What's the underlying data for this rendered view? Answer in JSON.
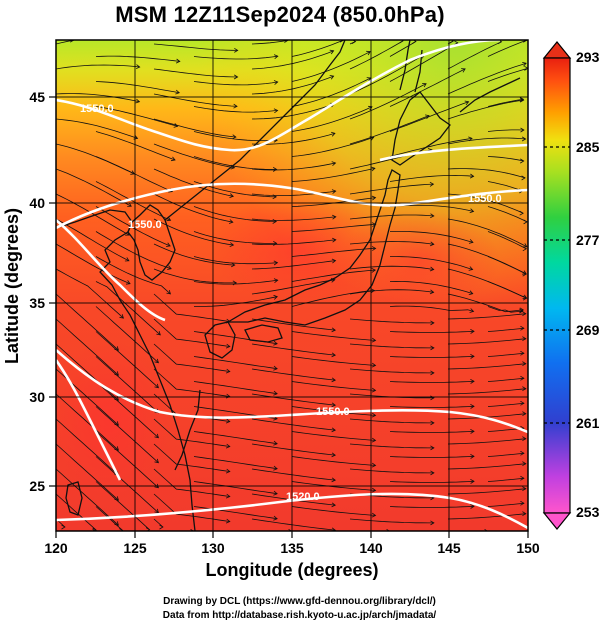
{
  "title": "MSM 12Z11Sep2024 (850.0hPa)",
  "map": {
    "x_axis": {
      "label": "Longitude (degrees)",
      "range": [
        120,
        150
      ],
      "ticks": [
        120,
        125,
        130,
        135,
        140,
        145,
        150
      ],
      "tick_labels": [
        "120",
        "125",
        "130",
        "135",
        "140",
        "145",
        "150"
      ]
    },
    "y_axis": {
      "label": "Latitude  (degrees)",
      "range": [
        22.4,
        47.6
      ],
      "ticks": [
        25,
        30,
        35,
        40,
        45
      ],
      "tick_labels": [
        "25",
        "30",
        "35",
        "40",
        "45"
      ]
    },
    "gridlines": "every 5 degrees",
    "field": "temperature (shaded, K) with wind streamlines and geopotential height contours",
    "colorbar": {
      "range": [
        253,
        293
      ],
      "labels": [
        "293",
        "285",
        "277",
        "269",
        "261",
        "253"
      ],
      "colors": [
        "#ff55aa",
        "#e83ad8",
        "#a020e0",
        "#4030d0",
        "#1060f0",
        "#00a0ff",
        "#00d0d0",
        "#00d890",
        "#20d040",
        "#80e020",
        "#d8f020",
        "#ffd000",
        "#ff9000",
        "#ff5000",
        "#f02818",
        "#e01818"
      ]
    },
    "height_contours": [
      {
        "value": 1520.0,
        "label": "1520.0"
      },
      {
        "value": 1550.0,
        "label": "1550.0"
      },
      {
        "value": 1550.0,
        "label": "1550.0"
      },
      {
        "value": 1550.0,
        "label": "1550.0"
      },
      {
        "value": 1550.0,
        "label": "1550.0"
      }
    ]
  },
  "footer": {
    "line1": "Drawing by DCL (https://www.gfd-dennou.org/library/dcl/)",
    "line2": "Data from http://database.rish.kyoto-u.ac.jp/arch/jmadata/"
  }
}
